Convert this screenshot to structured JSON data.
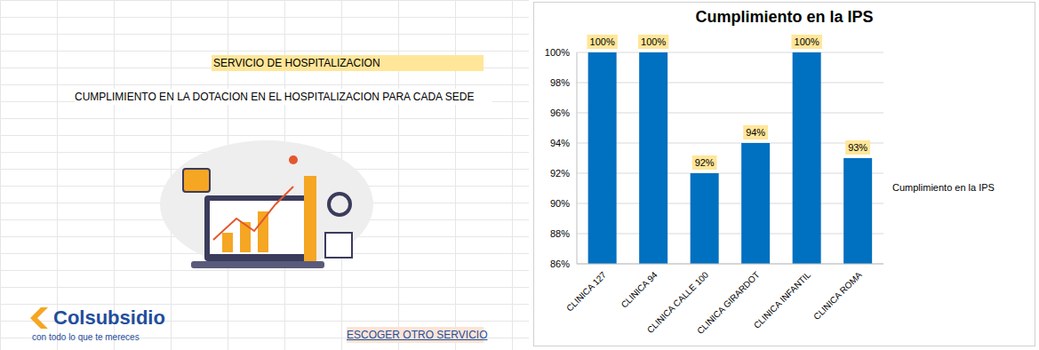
{
  "sheet": {
    "header": "SERVICIO DE HOSPITALIZACION",
    "subtitle": "CUMPLIMIENTO EN LA DOTACION EN EL HOSPITALIZACION PARA CADA SEDE",
    "logo": "Colsubsidio",
    "slogan": "con todo lo que te mereces",
    "link": "ESCOGER OTRO SERVICIO"
  },
  "chart_data": {
    "type": "bar",
    "title": "Cumplimiento en la IPS",
    "categories": [
      "CLINICA 127",
      "CLINICA 94",
      "CLINICA CALLE 100",
      "CLINICA GIRARDOT",
      "CLINICA INFANTIL",
      "CLINICA ROMA"
    ],
    "series": [
      {
        "name": "Cumplimiento en la IPS",
        "color": "#0070c0",
        "values": [
          100,
          100,
          92,
          94,
          100,
          93
        ],
        "value_labels": [
          "100%",
          "100%",
          "92%",
          "94%",
          "100%",
          "93%"
        ]
      }
    ],
    "ylim": [
      86,
      100
    ],
    "yticks": [
      {
        "value": 86,
        "label": "86%"
      },
      {
        "value": 88,
        "label": "88%"
      },
      {
        "value": 90,
        "label": "90%"
      },
      {
        "value": 92,
        "label": "92%"
      },
      {
        "value": 94,
        "label": "94%"
      },
      {
        "value": 96,
        "label": "96%"
      },
      {
        "value": 98,
        "label": "98%"
      },
      {
        "value": 100,
        "label": "100%"
      }
    ],
    "grid": true,
    "data_labels": true,
    "legend": "right"
  }
}
